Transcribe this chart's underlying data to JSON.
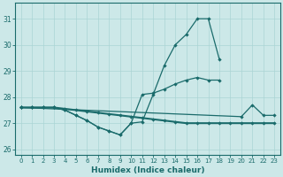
{
  "xlabel": "Humidex (Indice chaleur)",
  "background_color": "#cce8e8",
  "grid_color": "#aad4d4",
  "line_color": "#1a6b6b",
  "x_hours": [
    0,
    1,
    2,
    3,
    4,
    5,
    6,
    7,
    8,
    9,
    10,
    11,
    12,
    13,
    14,
    15,
    16,
    17,
    18,
    19,
    20,
    21,
    22,
    23
  ],
  "series_peak": [
    27.6,
    27.6,
    27.6,
    27.6,
    27.5,
    27.3,
    27.1,
    26.85,
    26.7,
    26.55,
    27.0,
    27.05,
    28.1,
    29.2,
    30.0,
    30.4,
    31.0,
    31.0,
    29.45,
    null,
    null,
    null,
    null,
    null
  ],
  "series_mid": [
    27.6,
    27.6,
    27.6,
    27.6,
    27.5,
    27.3,
    27.1,
    26.85,
    26.7,
    26.55,
    27.0,
    28.1,
    28.15,
    28.3,
    28.5,
    28.65,
    28.75,
    28.65,
    28.65,
    null,
    null,
    null,
    null,
    null
  ],
  "series_flat": [
    27.6,
    27.6,
    27.6,
    27.6,
    27.55,
    27.5,
    27.45,
    27.4,
    27.35,
    27.3,
    27.25,
    27.2,
    27.15,
    27.1,
    27.05,
    27.0,
    27.0,
    27.0,
    27.0,
    27.0,
    27.0,
    27.0,
    27.0,
    27.0
  ],
  "series_right": [
    27.6,
    null,
    null,
    null,
    null,
    null,
    null,
    null,
    null,
    null,
    null,
    null,
    null,
    null,
    null,
    null,
    null,
    null,
    null,
    null,
    27.25,
    27.7,
    27.3,
    27.3
  ],
  "ylim": [
    25.8,
    31.6
  ],
  "yticks": [
    26,
    27,
    28,
    29,
    30,
    31
  ]
}
